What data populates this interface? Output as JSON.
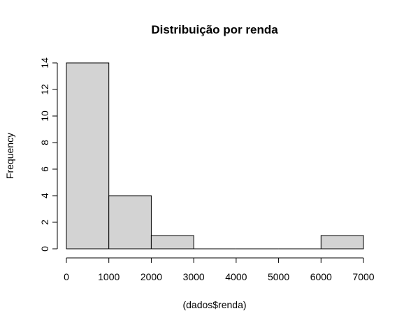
{
  "chart_data": {
    "type": "bar",
    "title": "Distribuição por renda",
    "xlabel": "(dados$renda)",
    "ylabel": "Frequency",
    "bins": [
      {
        "start": 0,
        "end": 1000,
        "value": 14
      },
      {
        "start": 1000,
        "end": 2000,
        "value": 4
      },
      {
        "start": 2000,
        "end": 3000,
        "value": 1
      },
      {
        "start": 3000,
        "end": 4000,
        "value": 0
      },
      {
        "start": 4000,
        "end": 5000,
        "value": 0
      },
      {
        "start": 5000,
        "end": 6000,
        "value": 0
      },
      {
        "start": 6000,
        "end": 7000,
        "value": 1
      }
    ],
    "xlim": [
      0,
      7000
    ],
    "ylim": [
      0,
      14
    ],
    "x_ticks": [
      0,
      1000,
      2000,
      3000,
      4000,
      5000,
      6000,
      7000
    ],
    "y_ticks": [
      0,
      2,
      4,
      6,
      8,
      10,
      12,
      14
    ],
    "bar_color": "#d3d3d3",
    "grid": false
  }
}
